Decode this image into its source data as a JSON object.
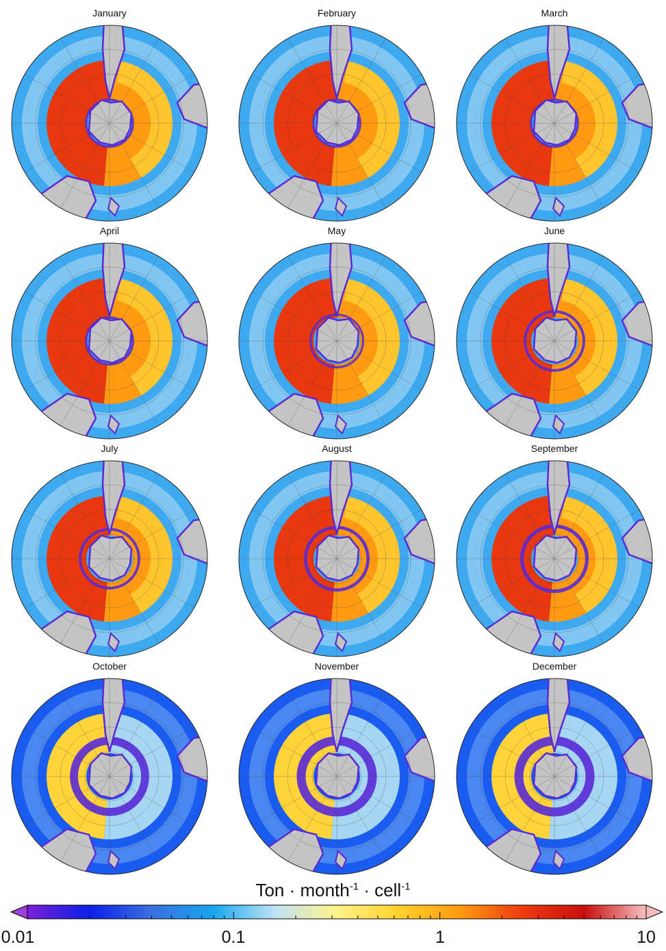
{
  "panels": [
    {
      "month": "January",
      "intensity": 1.0
    },
    {
      "month": "February",
      "intensity": 0.98
    },
    {
      "month": "March",
      "intensity": 1.0
    },
    {
      "month": "April",
      "intensity": 0.95
    },
    {
      "month": "May",
      "intensity": 0.9
    },
    {
      "month": "June",
      "intensity": 0.85
    },
    {
      "month": "July",
      "intensity": 0.85
    },
    {
      "month": "August",
      "intensity": 0.82
    },
    {
      "month": "September",
      "intensity": 0.8
    },
    {
      "month": "October",
      "intensity": 0.55
    },
    {
      "month": "November",
      "intensity": 0.5
    },
    {
      "month": "December",
      "intensity": 0.5
    }
  ],
  "colorbar": {
    "title_base": [
      "Ton · month",
      " · cell"
    ],
    "title_exp": [
      "-1",
      "-1"
    ],
    "scale": "log",
    "range": [
      0.01,
      10
    ],
    "ticks": [
      "0.01",
      "0.1",
      "1",
      "10"
    ],
    "colors": [
      "#7a1fd6",
      "#0b1fe8",
      "#3a6fe0",
      "#16a6ee",
      "#bfe3f6",
      "#fff38a",
      "#ffd22a",
      "#ff9a10",
      "#ef3a10",
      "#c80e0e",
      "#f6c0c0"
    ]
  },
  "map_colors": {
    "land": "#c4c4c4",
    "land_edge": "#5a2ad6",
    "ocean_low": "#1a5cf0",
    "ocean_mid": "#3fa9ef",
    "ocean_light": "#a6d6f2",
    "hot_red": "#e8380f",
    "hot_orange": "#ff9a12",
    "warm_yellow": "#ffd33a"
  }
}
